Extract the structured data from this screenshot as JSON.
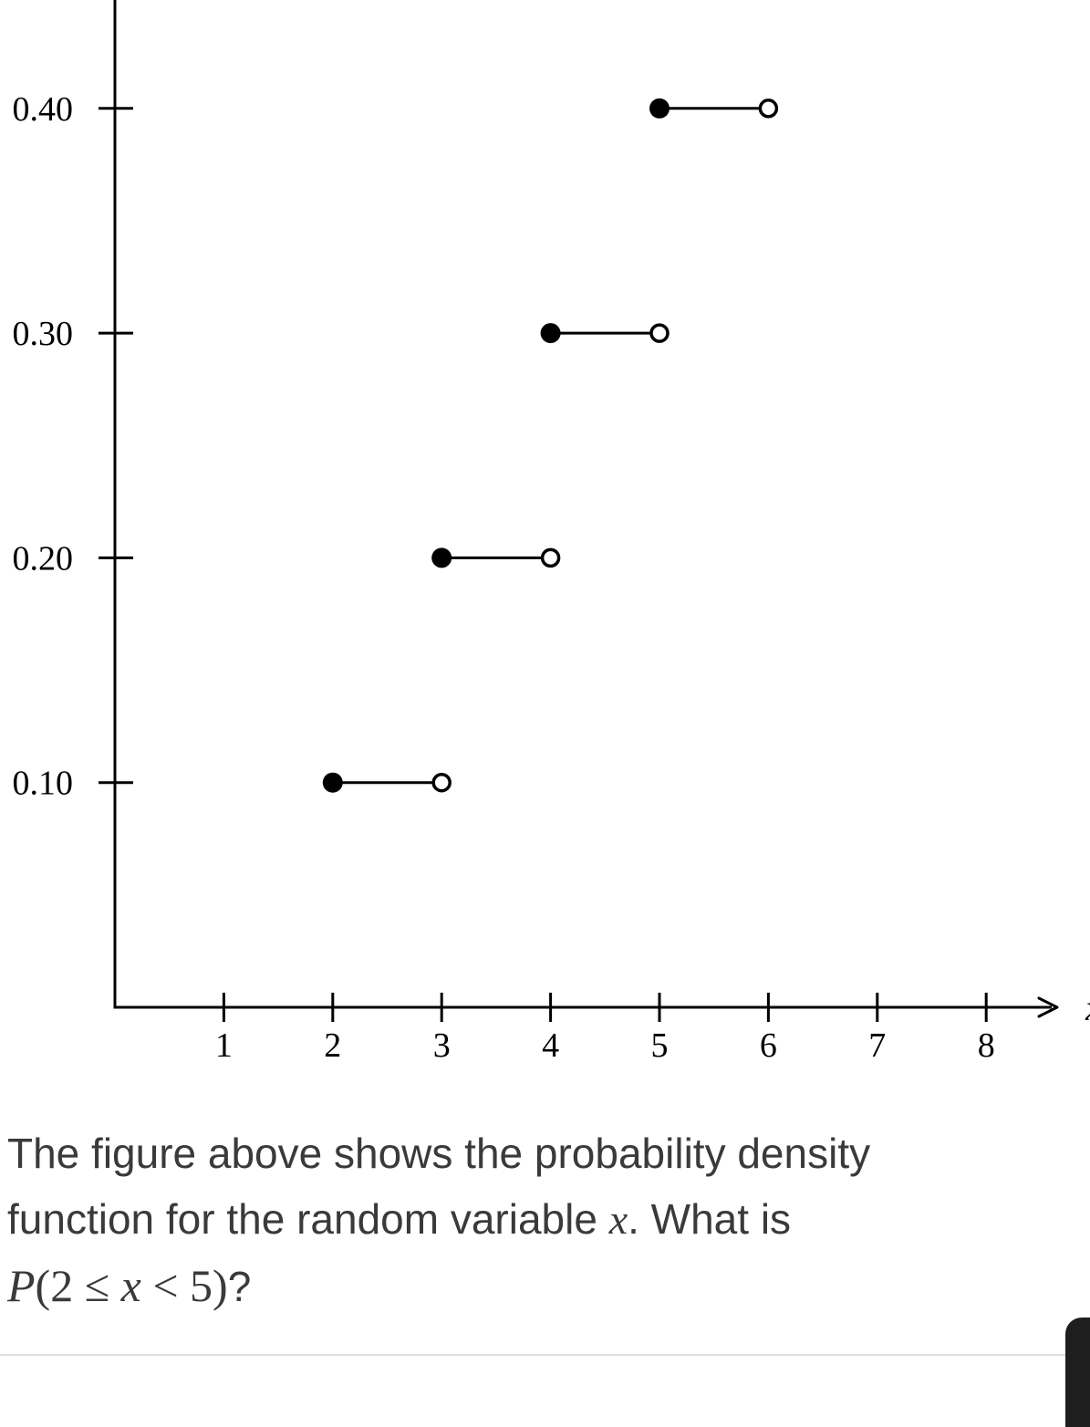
{
  "chart_data": {
    "type": "step",
    "title": "",
    "xlabel": "x",
    "ylabel": "",
    "xlim": [
      0,
      8.4
    ],
    "ylim": [
      0,
      0.445
    ],
    "x_ticks": [
      "1",
      "2",
      "3",
      "4",
      "5",
      "6",
      "7",
      "8"
    ],
    "y_ticks": [
      "0.10",
      "0.20",
      "0.30",
      "0.40"
    ],
    "segments": [
      {
        "x_start": 2,
        "x_end": 3,
        "y": 0.1,
        "closed_start": true,
        "open_end": true
      },
      {
        "x_start": 3,
        "x_end": 4,
        "y": 0.2,
        "closed_start": true,
        "open_end": true
      },
      {
        "x_start": 4,
        "x_end": 5,
        "y": 0.3,
        "closed_start": true,
        "open_end": true
      },
      {
        "x_start": 5,
        "x_end": 6,
        "y": 0.4,
        "closed_start": true,
        "open_end": true
      }
    ]
  },
  "question": {
    "line1": "The figure above shows the probability density",
    "line2_prefix": "function for the random variable ",
    "line2_var": "x",
    "line2_suffix": ". What is",
    "expr_P": "P",
    "expr_open": "(2 ≤ ",
    "expr_var": "x",
    "expr_close": " < 5)",
    "expr_end": "?"
  }
}
